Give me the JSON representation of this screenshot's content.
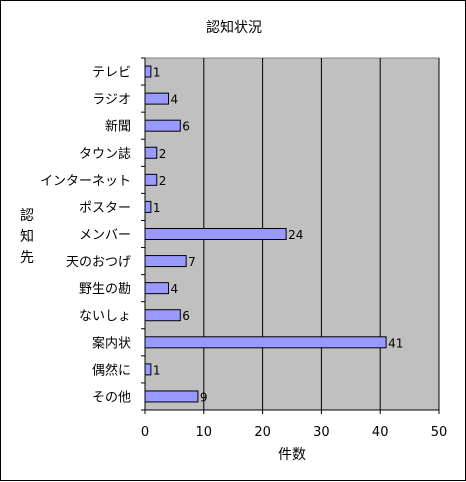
{
  "chart_data": {
    "type": "bar",
    "orientation": "horizontal",
    "title": "認知状況",
    "xlabel": "件数",
    "ylabel": "認知先",
    "categories": [
      "テレビ",
      "ラジオ",
      "新聞",
      "タウン誌",
      "インターネット",
      "ポスター",
      "メンバー",
      "天のおつげ",
      "野生の勘",
      "ないしょ",
      "案内状",
      "偶然に",
      "その他"
    ],
    "values": [
      1,
      4,
      6,
      2,
      2,
      1,
      24,
      7,
      4,
      6,
      41,
      1,
      9
    ],
    "data_labels": [
      "1",
      "4",
      "6",
      "2",
      "2",
      "1",
      "24",
      "7",
      "4",
      "6",
      "41",
      "1",
      "9"
    ],
    "xlim": [
      0,
      50
    ],
    "xticks": [
      0,
      10,
      20,
      30,
      40,
      50
    ],
    "xtick_labels": [
      "0",
      "10",
      "20",
      "30",
      "40",
      "50"
    ],
    "grid": "vertical",
    "legend": "none",
    "colors": {
      "bar_fill": "#9999ff",
      "bar_stroke": "#000000",
      "plot_background": "#c0c0c0",
      "gridline": "#000000"
    }
  }
}
